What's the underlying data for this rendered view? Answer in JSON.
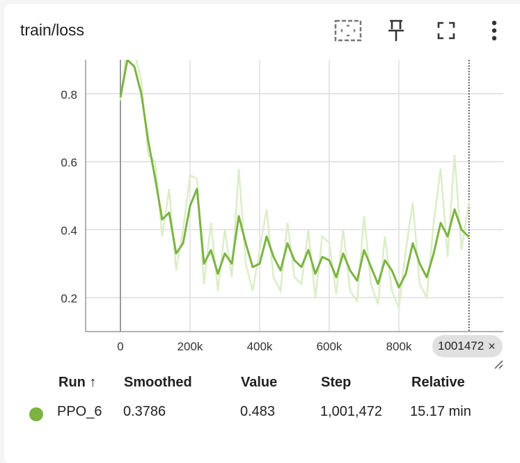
{
  "card": {
    "title": "train/loss"
  },
  "toolbar": {
    "fit_icon": "fit-domain-icon",
    "pin_icon": "pin-icon",
    "fullscreen_icon": "fullscreen-icon",
    "more_icon": "more-vert-icon"
  },
  "colors": {
    "series": "#7cb342",
    "series_raw": "#dcedc8",
    "grid": "#dddddd",
    "axis": "#999999"
  },
  "chart_data": {
    "type": "line",
    "title": "train/loss",
    "xlabel": "",
    "ylabel": "",
    "xlim": [
      -100000,
      1100000
    ],
    "ylim": [
      0.1,
      0.9
    ],
    "x_ticks": [
      0,
      200000,
      400000,
      600000,
      800000
    ],
    "x_tick_labels": [
      "0",
      "200k",
      "400k",
      "600k",
      "800k"
    ],
    "y_ticks": [
      0.2,
      0.4,
      0.6,
      0.8
    ],
    "y_tick_labels": [
      "0.2",
      "0.4",
      "0.6",
      "0.8"
    ],
    "grid": true,
    "series": [
      {
        "name": "PPO_6",
        "x": [
          0,
          20000,
          40000,
          60000,
          80000,
          100000,
          120000,
          140000,
          160000,
          180000,
          200000,
          220000,
          240000,
          260000,
          280000,
          300000,
          320000,
          340000,
          360000,
          380000,
          400000,
          420000,
          440000,
          460000,
          480000,
          500000,
          520000,
          540000,
          560000,
          580000,
          600000,
          620000,
          640000,
          660000,
          680000,
          700000,
          720000,
          740000,
          760000,
          780000,
          800000,
          820000,
          840000,
          860000,
          880000,
          900000,
          920000,
          940000,
          960000,
          980000,
          1001472
        ],
        "smoothed": [
          0.79,
          0.9,
          0.88,
          0.8,
          0.66,
          0.55,
          0.43,
          0.45,
          0.33,
          0.36,
          0.47,
          0.52,
          0.3,
          0.34,
          0.27,
          0.33,
          0.3,
          0.44,
          0.36,
          0.29,
          0.3,
          0.38,
          0.32,
          0.28,
          0.36,
          0.31,
          0.29,
          0.34,
          0.27,
          0.32,
          0.31,
          0.26,
          0.33,
          0.28,
          0.25,
          0.34,
          0.29,
          0.24,
          0.31,
          0.28,
          0.23,
          0.27,
          0.36,
          0.3,
          0.26,
          0.33,
          0.42,
          0.38,
          0.46,
          0.4,
          0.3786
        ],
        "value": [
          0.78,
          0.95,
          0.92,
          0.84,
          0.62,
          0.6,
          0.38,
          0.52,
          0.28,
          0.4,
          0.56,
          0.55,
          0.24,
          0.42,
          0.22,
          0.4,
          0.26,
          0.58,
          0.3,
          0.22,
          0.34,
          0.46,
          0.26,
          0.22,
          0.42,
          0.26,
          0.24,
          0.4,
          0.2,
          0.38,
          0.36,
          0.21,
          0.4,
          0.22,
          0.19,
          0.44,
          0.24,
          0.18,
          0.38,
          0.22,
          0.17,
          0.34,
          0.48,
          0.24,
          0.2,
          0.42,
          0.58,
          0.32,
          0.62,
          0.34,
          0.483
        ]
      }
    ],
    "cursor_step": 1001472,
    "cursor_label": "1001472"
  },
  "legend": {
    "headers": {
      "run": "Run ↑",
      "smoothed": "Smoothed",
      "value": "Value",
      "step": "Step",
      "relative": "Relative"
    },
    "row": {
      "run": "PPO_6",
      "smoothed": "0.3786",
      "value": "0.483",
      "step": "1,001,472",
      "relative": "15.17 min"
    }
  }
}
